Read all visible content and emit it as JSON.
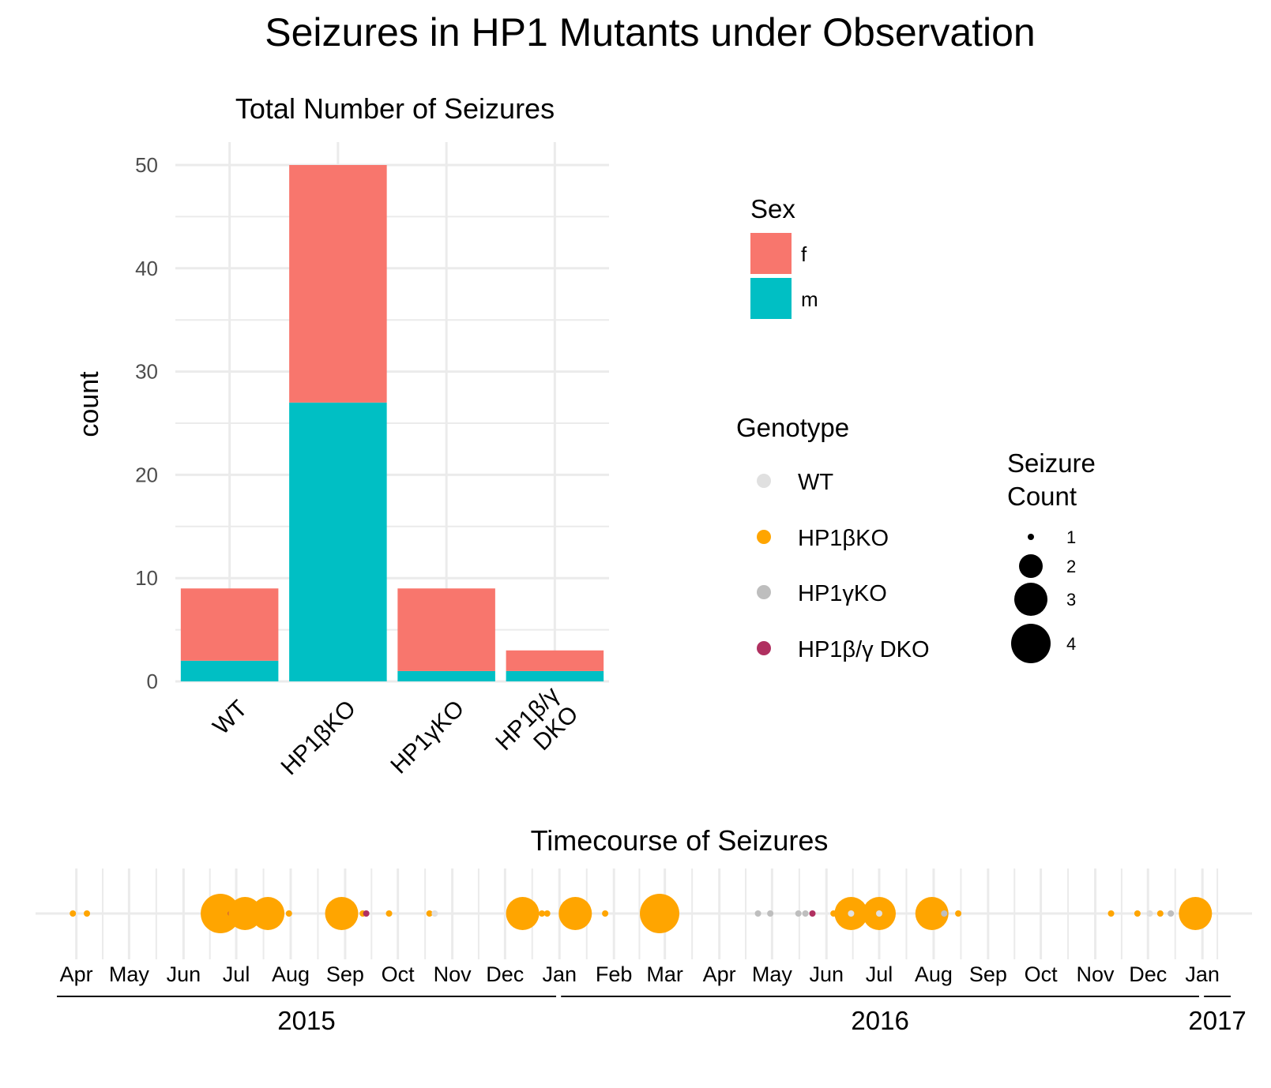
{
  "title": "Seizures in HP1 Mutants under Observation",
  "chart_data": [
    {
      "type": "bar",
      "stacked": true,
      "title": "Total Number of Seizures",
      "xlabel": "",
      "ylabel": "count",
      "ylim": [
        0,
        50
      ],
      "yticks": [
        "0",
        "10",
        "20",
        "30",
        "40",
        "50"
      ],
      "categories": [
        "WT",
        "HP1βKO",
        "HP1γKO",
        "HP1β/γ DKO"
      ],
      "category_lines": [
        [
          "WT"
        ],
        [
          "HP1βKO"
        ],
        [
          "HP1γKO"
        ],
        [
          "HP1β/γ",
          "DKO"
        ]
      ],
      "series": [
        {
          "name": "m",
          "color": "#00BFC4",
          "values": [
            2,
            27,
            1,
            1
          ]
        },
        {
          "name": "f",
          "color": "#F8766D",
          "values": [
            7,
            23,
            8,
            2
          ]
        }
      ],
      "grid": true,
      "legend": {
        "title": "Sex",
        "items": [
          {
            "label": "f",
            "color": "#F8766D"
          },
          {
            "label": "m",
            "color": "#00BFC4"
          }
        ]
      }
    },
    {
      "type": "scatter",
      "title": "Timecourse of Seizures",
      "x_axis": "date",
      "xlim": [
        "2015-03-20",
        "2017-01-18"
      ],
      "months": [
        {
          "label": "Apr",
          "date": "2015-04-01"
        },
        {
          "label": "May",
          "date": "2015-05-01"
        },
        {
          "label": "Jun",
          "date": "2015-06-01"
        },
        {
          "label": "Jul",
          "date": "2015-07-01"
        },
        {
          "label": "Aug",
          "date": "2015-08-01"
        },
        {
          "label": "Sep",
          "date": "2015-09-01"
        },
        {
          "label": "Oct",
          "date": "2015-10-01"
        },
        {
          "label": "Nov",
          "date": "2015-11-01"
        },
        {
          "label": "Dec",
          "date": "2015-12-01"
        },
        {
          "label": "Jan",
          "date": "2016-01-01"
        },
        {
          "label": "Feb",
          "date": "2016-02-01"
        },
        {
          "label": "Mar",
          "date": "2016-03-01"
        },
        {
          "label": "Apr",
          "date": "2016-04-01"
        },
        {
          "label": "May",
          "date": "2016-05-01"
        },
        {
          "label": "Jun",
          "date": "2016-06-01"
        },
        {
          "label": "Jul",
          "date": "2016-07-01"
        },
        {
          "label": "Aug",
          "date": "2016-08-01"
        },
        {
          "label": "Sep",
          "date": "2016-09-01"
        },
        {
          "label": "Oct",
          "date": "2016-10-01"
        },
        {
          "label": "Nov",
          "date": "2016-11-01"
        },
        {
          "label": "Dec",
          "date": "2016-12-01"
        },
        {
          "label": "Jan",
          "date": "2017-01-01"
        }
      ],
      "years": [
        {
          "label": "2015",
          "start": "2015-03-20",
          "end": "2015-12-31"
        },
        {
          "label": "2016",
          "start": "2016-01-01",
          "end": "2016-12-31"
        },
        {
          "label": "2017",
          "start": "2017-01-01",
          "end": "2017-01-18"
        }
      ],
      "genotype_colors": {
        "WT": "#E0E0E0",
        "HP1βKO": "#FFA500",
        "HP1γKO": "#BEBEBE",
        "HP1β/γ DKO": "#B03060"
      },
      "points": [
        {
          "date": "2015-03-30",
          "genotype": "HP1βKO",
          "count": 1
        },
        {
          "date": "2015-04-07",
          "genotype": "HP1βKO",
          "count": 1
        },
        {
          "date": "2015-06-22",
          "genotype": "HP1βKO",
          "count": 4
        },
        {
          "date": "2015-06-28",
          "genotype": "HP1β/γ DKO",
          "count": 1
        },
        {
          "date": "2015-07-06",
          "genotype": "HP1βKO",
          "count": 3
        },
        {
          "date": "2015-07-19",
          "genotype": "HP1βKO",
          "count": 3
        },
        {
          "date": "2015-07-31",
          "genotype": "HP1βKO",
          "count": 1
        },
        {
          "date": "2015-08-24",
          "genotype": "HP1βKO",
          "count": 1
        },
        {
          "date": "2015-08-30",
          "genotype": "HP1βKO",
          "count": 3
        },
        {
          "date": "2015-09-11",
          "genotype": "HP1βKO",
          "count": 1
        },
        {
          "date": "2015-09-13",
          "genotype": "HP1β/γ DKO",
          "count": 1
        },
        {
          "date": "2015-09-26",
          "genotype": "HP1βKO",
          "count": 1
        },
        {
          "date": "2015-10-19",
          "genotype": "HP1βKO",
          "count": 1
        },
        {
          "date": "2015-10-22",
          "genotype": "WT",
          "count": 1
        },
        {
          "date": "2015-12-11",
          "genotype": "HP1βKO",
          "count": 3
        },
        {
          "date": "2015-12-22",
          "genotype": "HP1βKO",
          "count": 1
        },
        {
          "date": "2015-12-25",
          "genotype": "HP1βKO",
          "count": 1
        },
        {
          "date": "2016-01-10",
          "genotype": "HP1βKO",
          "count": 3
        },
        {
          "date": "2016-01-27",
          "genotype": "HP1βKO",
          "count": 1
        },
        {
          "date": "2016-02-27",
          "genotype": "HP1βKO",
          "count": 4
        },
        {
          "date": "2016-04-23",
          "genotype": "HP1γKO",
          "count": 1
        },
        {
          "date": "2016-04-30",
          "genotype": "HP1γKO",
          "count": 1
        },
        {
          "date": "2016-05-16",
          "genotype": "HP1γKO",
          "count": 1
        },
        {
          "date": "2016-05-20",
          "genotype": "HP1γKO",
          "count": 1
        },
        {
          "date": "2016-05-24",
          "genotype": "HP1β/γ DKO",
          "count": 1
        },
        {
          "date": "2016-06-05",
          "genotype": "HP1βKO",
          "count": 1
        },
        {
          "date": "2016-06-15",
          "genotype": "HP1βKO",
          "count": 3
        },
        {
          "date": "2016-06-15",
          "genotype": "WT",
          "count": 1
        },
        {
          "date": "2016-06-28",
          "genotype": "WT",
          "count": 1
        },
        {
          "date": "2016-07-01",
          "genotype": "HP1βKO",
          "count": 3
        },
        {
          "date": "2016-07-01",
          "genotype": "WT",
          "count": 1
        },
        {
          "date": "2016-07-31",
          "genotype": "HP1βKO",
          "count": 3
        },
        {
          "date": "2016-08-07",
          "genotype": "HP1γKO",
          "count": 1
        },
        {
          "date": "2016-08-15",
          "genotype": "HP1βKO",
          "count": 1
        },
        {
          "date": "2016-11-10",
          "genotype": "HP1βKO",
          "count": 1
        },
        {
          "date": "2016-11-25",
          "genotype": "HP1βKO",
          "count": 1
        },
        {
          "date": "2016-12-02",
          "genotype": "WT",
          "count": 1
        },
        {
          "date": "2016-12-08",
          "genotype": "HP1βKO",
          "count": 1
        },
        {
          "date": "2016-12-14",
          "genotype": "HP1γKO",
          "count": 1
        },
        {
          "date": "2016-12-28",
          "genotype": "HP1βKO",
          "count": 3
        },
        {
          "date": "2017-01-04",
          "genotype": "HP1βKO",
          "count": 1
        }
      ]
    }
  ],
  "legend_genotype": {
    "title": "Genotype",
    "items": [
      {
        "label": "WT",
        "color": "#E0E0E0"
      },
      {
        "label": "HP1βKO",
        "color": "#FFA500"
      },
      {
        "label": "HP1γKO",
        "color": "#BEBEBE"
      },
      {
        "label": "HP1β/γ DKO",
        "color": "#B03060"
      }
    ]
  },
  "legend_size": {
    "title_lines": [
      "Seizure",
      "Count"
    ],
    "items": [
      {
        "label": "1",
        "count": 1
      },
      {
        "label": "2",
        "count": 2
      },
      {
        "label": "3",
        "count": 3
      },
      {
        "label": "4",
        "count": 4
      }
    ]
  }
}
